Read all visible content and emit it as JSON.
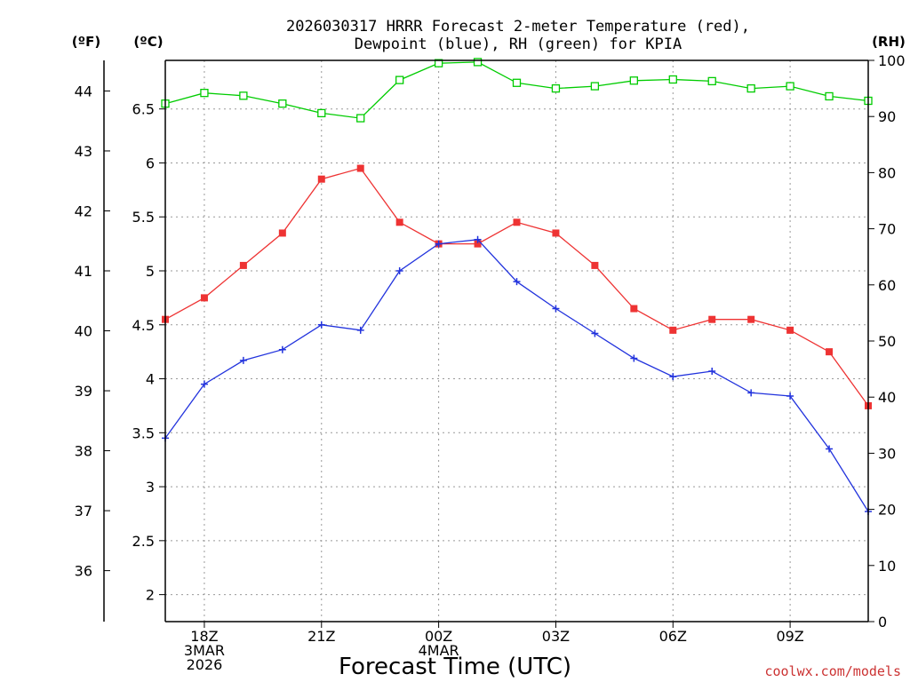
{
  "chart_data": {
    "type": "line",
    "title_line1": "2026030317 HRRR Forecast 2-meter Temperature (red),",
    "title_line2": "Dewpoint (blue), RH (green) for KPIA",
    "xlabel": "Forecast Time (UTC)",
    "unit_f": "(ºF)",
    "unit_c": "(ºC)",
    "unit_rh": "(RH)",
    "credit": "coolwx.com/models",
    "colors": {
      "temperature": "#ee3333",
      "dewpoint": "#2233dd",
      "rh": "#00cc00",
      "grid": "#999999",
      "credit": "#cc3333"
    },
    "hours": [
      17,
      18,
      19,
      20,
      21,
      22,
      23,
      24,
      25,
      26,
      27,
      28,
      29,
      30,
      31,
      32,
      33,
      34,
      35
    ],
    "hours_note_unit": "hour offset from 2026-03-03 00Z",
    "xlim": [
      17,
      35
    ],
    "x_ticks": [
      {
        "hour": 18,
        "lines": [
          "18Z",
          "3MAR",
          "2026"
        ]
      },
      {
        "hour": 21,
        "lines": [
          "21Z"
        ]
      },
      {
        "hour": 24,
        "lines": [
          "00Z",
          "4MAR"
        ]
      },
      {
        "hour": 27,
        "lines": [
          "03Z"
        ]
      },
      {
        "hour": 30,
        "lines": [
          "06Z"
        ]
      },
      {
        "hour": 33,
        "lines": [
          "09Z"
        ]
      }
    ],
    "celsius_ylim": [
      1.75,
      6.95
    ],
    "celsius_ticks": [
      "2",
      "2.5",
      "3",
      "3.5",
      "4",
      "4.5",
      "5",
      "5.5",
      "6",
      "6.5"
    ],
    "fahrenheit_ticks": [
      "36",
      "37",
      "38",
      "39",
      "40",
      "41",
      "42",
      "43",
      "44"
    ],
    "rh_ylim": [
      0,
      100
    ],
    "rh_ticks": [
      "0",
      "10",
      "20",
      "30",
      "40",
      "50",
      "60",
      "70",
      "80",
      "90",
      "100"
    ],
    "series": [
      {
        "key": "temperature",
        "marker": "filled-square",
        "values": [
          4.55,
          4.75,
          5.05,
          5.35,
          5.85,
          5.95,
          5.45,
          5.25,
          5.25,
          5.45,
          5.35,
          5.05,
          4.65,
          4.45,
          4.55,
          4.55,
          4.45,
          4.25,
          3.75
        ]
      },
      {
        "key": "dewpoint",
        "marker": "plus",
        "values": [
          3.45,
          3.95,
          4.17,
          4.27,
          4.5,
          4.45,
          5.0,
          5.25,
          5.29,
          4.9,
          4.65,
          4.42,
          4.19,
          4.02,
          4.07,
          3.87,
          3.84,
          3.35,
          2.77
        ]
      },
      {
        "key": "rh",
        "marker": "open-square",
        "values": [
          92.3,
          94.2,
          93.7,
          92.3,
          90.6,
          89.7,
          96.5,
          99.5,
          99.7,
          96.0,
          95.0,
          95.4,
          96.4,
          96.6,
          96.3,
          95.0,
          95.4,
          93.6,
          92.8
        ]
      }
    ]
  }
}
